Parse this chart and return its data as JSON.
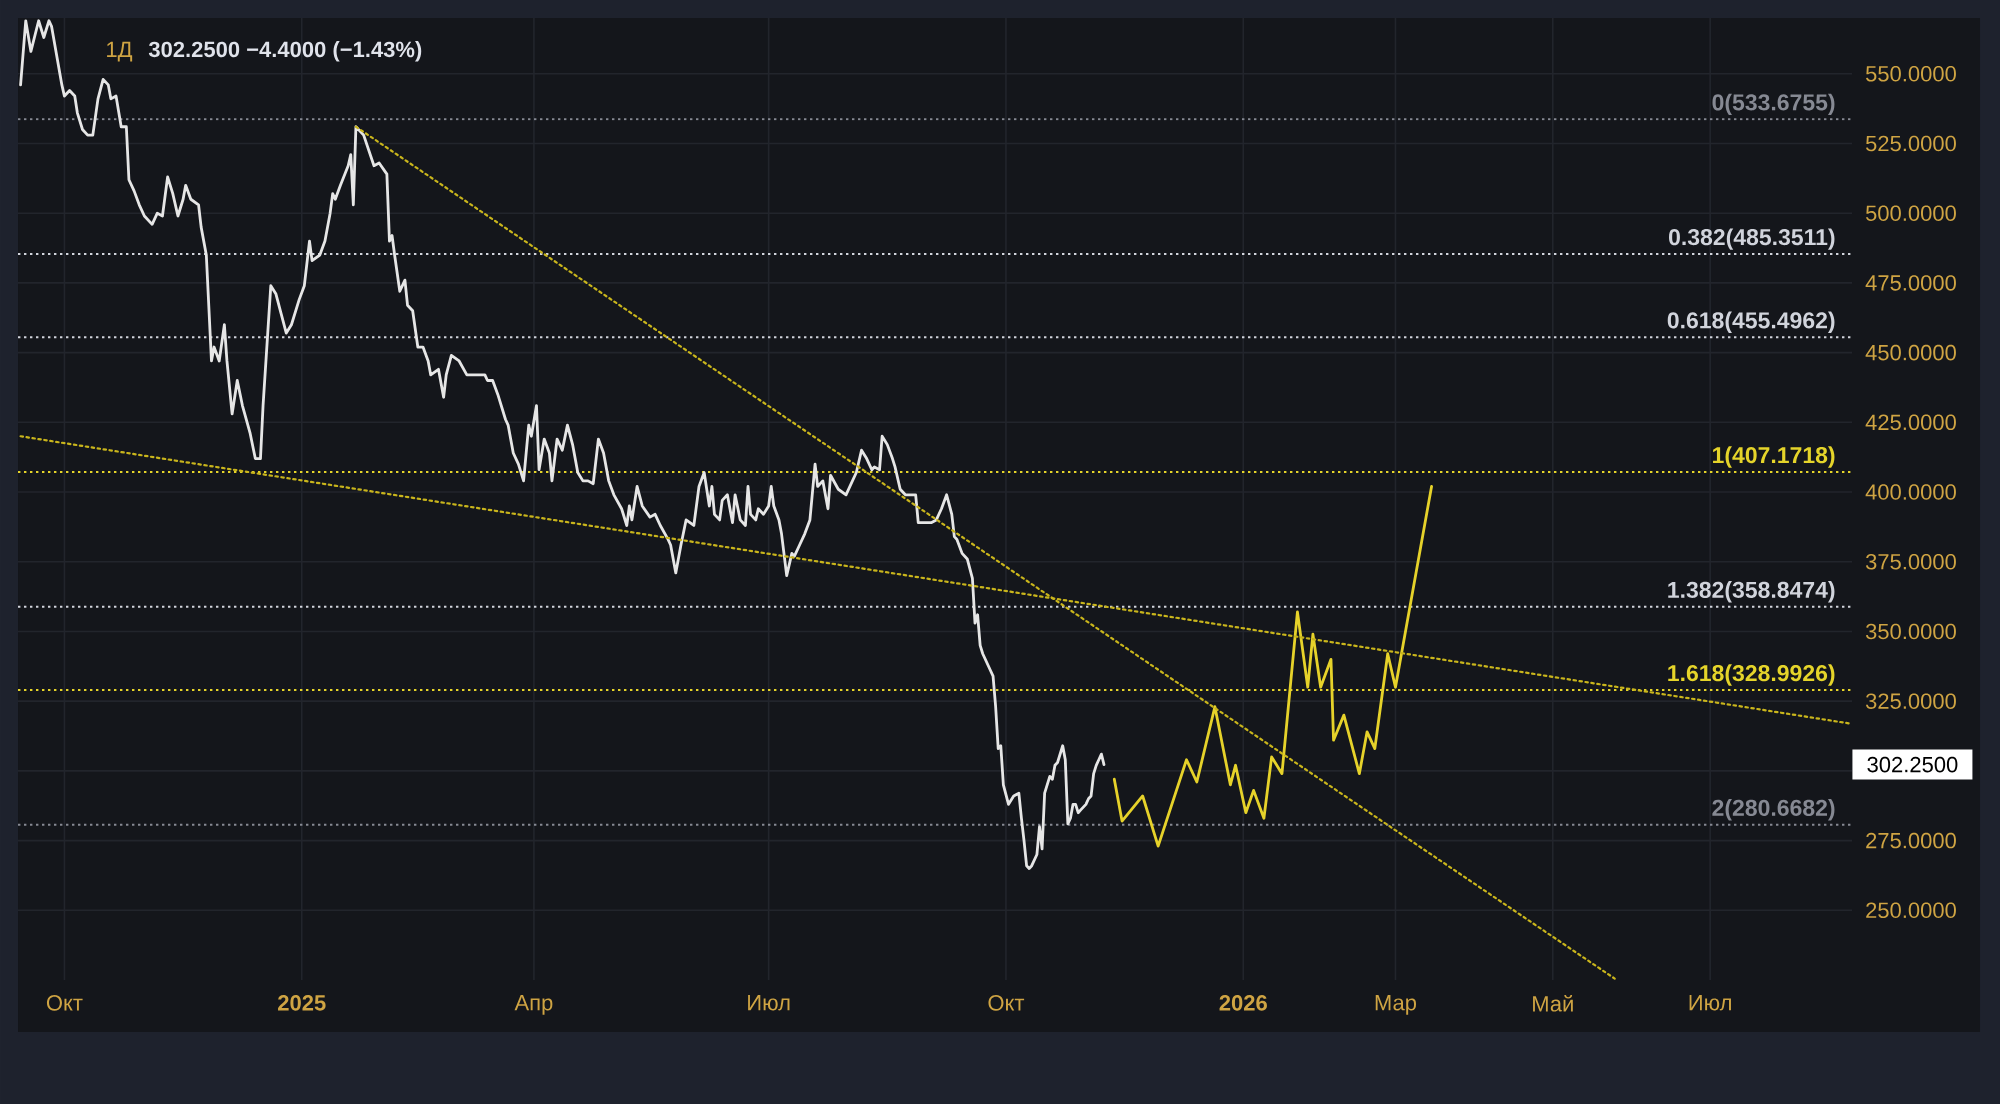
{
  "chart_data": {
    "type": "line",
    "title": "1Д",
    "subtitle": "302.2500 −4.4000 (−1.43%)",
    "xlim": [
      "2024-09-13",
      "2026-08-25"
    ],
    "ylim": [
      225,
      570
    ],
    "xticks": [
      {
        "value": "2024-10-01",
        "label": "Окт"
      },
      {
        "value": "2025-01-01",
        "label": "2025"
      },
      {
        "value": "2025-04-01",
        "label": "Апр"
      },
      {
        "value": "2025-07-01",
        "label": "Июл"
      },
      {
        "value": "2025-10-01",
        "label": "Окт"
      },
      {
        "value": "2026-01-01",
        "label": "2026"
      },
      {
        "value": "2026-03-01",
        "label": "Мар"
      },
      {
        "value": "2026-05-01",
        "label": "Май"
      },
      {
        "value": "2026-07-01",
        "label": "Июл"
      }
    ],
    "yticks": [
      {
        "value": 250,
        "label": "250.0000"
      },
      {
        "value": 275,
        "label": "275.0000"
      },
      {
        "value": 300,
        "label": null
      },
      {
        "value": 325,
        "label": "325.0000"
      },
      {
        "value": 350,
        "label": "350.0000"
      },
      {
        "value": 375,
        "label": "375.0000"
      },
      {
        "value": 400,
        "label": "400.0000"
      },
      {
        "value": 425,
        "label": "425.0000"
      },
      {
        "value": 450,
        "label": "450.0000"
      },
      {
        "value": 475,
        "label": "475.0000"
      },
      {
        "value": 500,
        "label": "500.0000"
      },
      {
        "value": 525,
        "label": "525.0000"
      },
      {
        "value": 550,
        "label": "550.0000"
      }
    ],
    "grid": true,
    "ref_lines": [
      {
        "axis": "y",
        "value": 533.6755,
        "label": "0(533.6755)",
        "color": "#868993",
        "line_style": "dotted"
      },
      {
        "axis": "y",
        "value": 485.3511,
        "label": "0.382(485.3511)",
        "color": "#d1d4dc",
        "line_style": "dotted"
      },
      {
        "axis": "y",
        "value": 455.4962,
        "label": "0.618(455.4962)",
        "color": "#d1d4dc",
        "line_style": "dotted"
      },
      {
        "axis": "y",
        "value": 407.1718,
        "label": "1(407.1718)",
        "color": "#e5d42a",
        "line_style": "dotted"
      },
      {
        "axis": "y",
        "value": 358.8474,
        "label": "1.382(358.8474)",
        "color": "#d1d4dc",
        "line_style": "dotted"
      },
      {
        "axis": "y",
        "value": 328.9926,
        "label": "1.618(328.9926)",
        "color": "#e5d42a",
        "line_style": "dotted"
      },
      {
        "axis": "y",
        "value": 280.6682,
        "label": "2(280.6682)",
        "color": "#868993",
        "line_style": "dotted"
      }
    ],
    "annotations": [
      "302.2500"
    ],
    "series": [
      {
        "color": "#e6e6e6",
        "line_style": "solid",
        "x": [
          "2024-09-14",
          "2024-09-16",
          "2024-09-18",
          "2024-09-21",
          "2024-09-23",
          "2024-09-25",
          "2024-09-26",
          "2024-09-30",
          "2024-10-01",
          "2024-10-03",
          "2024-10-05",
          "2024-10-06",
          "2024-10-08",
          "2024-10-10",
          "2024-10-12",
          "2024-10-14",
          "2024-10-16",
          "2024-10-18",
          "2024-10-19",
          "2024-10-21",
          "2024-10-23",
          "2024-10-25",
          "2024-10-26",
          "2024-10-28",
          "2024-10-30",
          "2024-11-01",
          "2024-11-04",
          "2024-11-06",
          "2024-11-08",
          "2024-11-10",
          "2024-11-12",
          "2024-11-14",
          "2024-11-16",
          "2024-11-17",
          "2024-11-19",
          "2024-11-22",
          "2024-11-23",
          "2024-11-25",
          "2024-11-27",
          "2024-11-28",
          "2024-11-30",
          "2024-12-02",
          "2024-12-03",
          "2024-12-05",
          "2024-12-07",
          "2024-12-09",
          "2024-12-12",
          "2024-12-14",
          "2024-12-16",
          "2024-12-17",
          "2024-12-20",
          "2024-12-22",
          "2024-12-24",
          "2024-12-26",
          "2024-12-28",
          "2024-12-31",
          "2025-01-02",
          "2025-01-04",
          "2025-01-05",
          "2025-01-08",
          "2025-01-10",
          "2025-01-12",
          "2025-01-13",
          "2025-01-14",
          "2025-01-16",
          "2025-01-19",
          "2025-01-20",
          "2025-01-21",
          "2025-01-22",
          "2025-01-25",
          "2025-01-29",
          "2025-01-31",
          "2025-02-03",
          "2025-02-04",
          "2025-02-05",
          "2025-02-06",
          "2025-02-08",
          "2025-02-10",
          "2025-02-11",
          "2025-02-13",
          "2025-02-15",
          "2025-02-17",
          "2025-02-19",
          "2025-02-20",
          "2025-02-23",
          "2025-02-25",
          "2025-02-26",
          "2025-02-28",
          "2025-03-03",
          "2025-03-06",
          "2025-03-08",
          "2025-03-11",
          "2025-03-13",
          "2025-03-14",
          "2025-03-16",
          "2025-03-18",
          "2025-03-21",
          "2025-03-22",
          "2025-03-24",
          "2025-03-26",
          "2025-03-28",
          "2025-03-30",
          "2025-03-31",
          "2025-04-02",
          "2025-04-03",
          "2025-04-05",
          "2025-04-07",
          "2025-04-08",
          "2025-04-10",
          "2025-04-12",
          "2025-04-14",
          "2025-04-16",
          "2025-04-18",
          "2025-04-20",
          "2025-04-22",
          "2025-04-24",
          "2025-04-26",
          "2025-04-28",
          "2025-04-30",
          "2025-05-02",
          "2025-05-05",
          "2025-05-07",
          "2025-05-08",
          "2025-05-09",
          "2025-05-11",
          "2025-05-13",
          "2025-05-16",
          "2025-05-18",
          "2025-05-20",
          "2025-05-23",
          "2025-05-24",
          "2025-05-26",
          "2025-05-28",
          "2025-05-30",
          "2025-06-02",
          "2025-06-04",
          "2025-06-06",
          "2025-06-08",
          "2025-06-09",
          "2025-06-10",
          "2025-06-12",
          "2025-06-13",
          "2025-06-15",
          "2025-06-17",
          "2025-06-18",
          "2025-06-20",
          "2025-06-22",
          "2025-06-23",
          "2025-06-24",
          "2025-06-26",
          "2025-06-27",
          "2025-06-29",
          "2025-07-01",
          "2025-07-02",
          "2025-07-03",
          "2025-07-05",
          "2025-07-06",
          "2025-07-08",
          "2025-07-10",
          "2025-07-11",
          "2025-07-13",
          "2025-07-15",
          "2025-07-17",
          "2025-07-19",
          "2025-07-20",
          "2025-07-22",
          "2025-07-24",
          "2025-07-25",
          "2025-07-28",
          "2025-07-31",
          "2025-08-02",
          "2025-08-04",
          "2025-08-06",
          "2025-08-08",
          "2025-08-10",
          "2025-08-11",
          "2025-08-13",
          "2025-08-14",
          "2025-08-16",
          "2025-08-18",
          "2025-08-19",
          "2025-08-21",
          "2025-08-23",
          "2025-08-25",
          "2025-08-27",
          "2025-08-28",
          "2025-08-31",
          "2025-09-02",
          "2025-09-04",
          "2025-09-06",
          "2025-09-08",
          "2025-09-10",
          "2025-09-11",
          "2025-09-12",
          "2025-09-14",
          "2025-09-16",
          "2025-09-18",
          "2025-09-19",
          "2025-09-20",
          "2025-09-21",
          "2025-09-22",
          "2025-09-25",
          "2025-09-26",
          "2025-09-27",
          "2025-09-28",
          "2025-09-29",
          "2025-09-30",
          "2025-10-02",
          "2025-10-04",
          "2025-10-06",
          "2025-10-07",
          "2025-10-08",
          "2025-10-09",
          "2025-10-10",
          "2025-10-11",
          "2025-10-13",
          "2025-10-14",
          "2025-10-15",
          "2025-10-16",
          "2025-10-17",
          "2025-10-18",
          "2025-10-19",
          "2025-10-20",
          "2025-10-21",
          "2025-10-23",
          "2025-10-24",
          "2025-10-25",
          "2025-10-26",
          "2025-10-27",
          "2025-10-28",
          "2025-10-29",
          "2025-10-30",
          "2025-11-01",
          "2025-11-02",
          "2025-11-03",
          "2025-11-04",
          "2025-11-05",
          "2025-11-06",
          "2025-11-07",
          "2025-11-08"
        ],
        "values": [
          546,
          569,
          558,
          569,
          563,
          569,
          567,
          546,
          542,
          544,
          542,
          536,
          530,
          528,
          528,
          541,
          548,
          546,
          541,
          542,
          531,
          531,
          512,
          508,
          503,
          499,
          496,
          500,
          499,
          513,
          507,
          499,
          505,
          510,
          505,
          503,
          495,
          485,
          447,
          452,
          447,
          460,
          447,
          428,
          440,
          431,
          421,
          412,
          412,
          431,
          474,
          471,
          464,
          457,
          460,
          469,
          474,
          490,
          483,
          485,
          490,
          500,
          507,
          505,
          510,
          517,
          521,
          503,
          531,
          528,
          517,
          518,
          514,
          490,
          492,
          485,
          472,
          476,
          467,
          465,
          452,
          452,
          447,
          442,
          444,
          434,
          442,
          449,
          447,
          442,
          442,
          442,
          442,
          440,
          440,
          435,
          426,
          424,
          414,
          410,
          404,
          424,
          420,
          431,
          408,
          419,
          414,
          404,
          419,
          415,
          424,
          417,
          407,
          404,
          404,
          403,
          419,
          414,
          404,
          399,
          394,
          388,
          395,
          390,
          402,
          395,
          391,
          392,
          388,
          383,
          381,
          371,
          381,
          390,
          388,
          402,
          407,
          395,
          402,
          392,
          390,
          397,
          399,
          389,
          399,
          390,
          388,
          402,
          392,
          390,
          394,
          392,
          395,
          402,
          395,
          390,
          385,
          370,
          378,
          377,
          381,
          385,
          390,
          410,
          402,
          404,
          394,
          406,
          401,
          399,
          403,
          407,
          415,
          412,
          408,
          409,
          408,
          420,
          417,
          412,
          409,
          401,
          399,
          399,
          399,
          389,
          389,
          389,
          390,
          394,
          399,
          392,
          384,
          383,
          378,
          376,
          369,
          353,
          356,
          345,
          342,
          336,
          334,
          323,
          308,
          309,
          295,
          288,
          291,
          292,
          283,
          275,
          266,
          265,
          266,
          270,
          280,
          272,
          292,
          295,
          298,
          297,
          302,
          303,
          309,
          304,
          281,
          283,
          288,
          288,
          285,
          286,
          288,
          290,
          291,
          299,
          302,
          304,
          306,
          302.25
        ]
      },
      {
        "color": "#e6d22a",
        "line_style": "solid",
        "x": [
          "2025-11-12",
          "2025-11-15",
          "2025-11-23",
          "2025-11-29",
          "2025-12-10",
          "2025-12-14",
          "2025-12-21",
          "2025-12-27",
          "2025-12-29",
          "2026-01-02",
          "2026-01-05",
          "2026-01-09",
          "2026-01-12",
          "2026-01-16",
          "2026-01-22",
          "2026-01-26",
          "2026-01-28",
          "2026-01-31",
          "2026-02-04",
          "2026-02-05",
          "2026-02-09",
          "2026-02-15",
          "2026-02-18",
          "2026-02-21",
          "2026-02-26",
          "2026-03-01",
          "2026-03-15"
        ],
        "values": [
          297,
          282,
          291,
          273,
          304,
          296,
          323,
          295,
          302,
          285,
          293,
          283,
          305,
          299,
          357,
          330,
          349,
          330,
          340,
          311,
          320,
          299,
          314,
          308,
          342,
          330,
          402
        ]
      },
      {
        "color": "#c9b51c",
        "line_style": "dotted",
        "x": [
          "2025-01-22",
          "2026-05-25"
        ],
        "values": [
          531,
          225.5
        ]
      },
      {
        "color": "#c9b51c",
        "line_style": "dotted",
        "x": [
          "2024-09-14",
          "2026-08-24"
        ],
        "values": [
          420,
          317
        ]
      }
    ]
  }
}
